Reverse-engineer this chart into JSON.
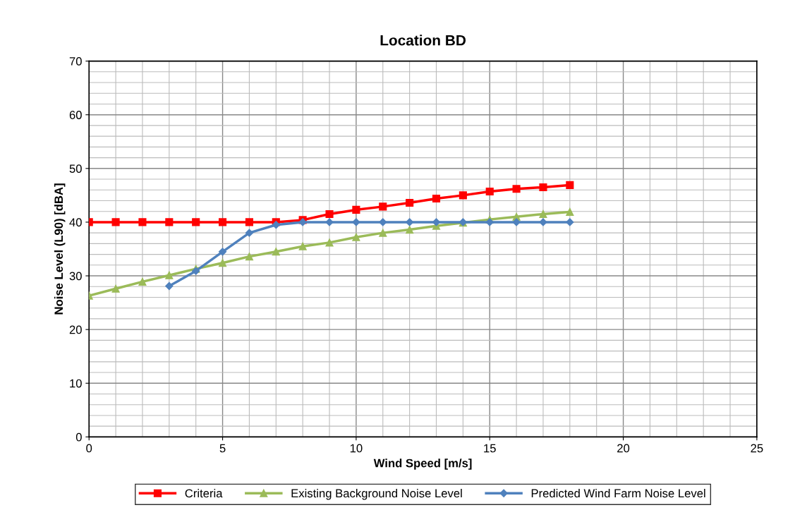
{
  "chart_data": {
    "type": "line",
    "title": "Location BD",
    "xlabel": "Wind Speed [m/s]",
    "ylabel": "Noise Level (L90) [dBA]",
    "xlim": [
      0,
      25
    ],
    "xticks": [
      0,
      5,
      10,
      15,
      20,
      25
    ],
    "ylim": [
      0,
      70
    ],
    "yticks": [
      0,
      10,
      20,
      30,
      40,
      50,
      60,
      70
    ],
    "grid": true,
    "legend": "bottom",
    "line_style": "solid",
    "series": [
      {
        "name": "Criteria",
        "color": "#ff0000",
        "marker": "square",
        "x": [
          0,
          1,
          2,
          3,
          4,
          5,
          6,
          7,
          8,
          9,
          10,
          11,
          12,
          13,
          14,
          15,
          16,
          17,
          18
        ],
        "values": [
          40,
          40,
          40,
          40,
          40,
          40,
          40,
          40,
          40.4,
          41.5,
          42.3,
          42.9,
          43.6,
          44.4,
          45.0,
          45.7,
          46.2,
          46.5,
          46.9
        ]
      },
      {
        "name": "Existing Background Noise Level",
        "color": "#9bbb59",
        "marker": "triangle",
        "x": [
          0,
          1,
          2,
          3,
          4,
          5,
          6,
          7,
          8,
          9,
          10,
          11,
          12,
          13,
          14,
          15,
          16,
          17,
          18
        ],
        "values": [
          26.3,
          27.6,
          28.9,
          30.1,
          31.3,
          32.4,
          33.6,
          34.5,
          35.5,
          36.2,
          37.2,
          38.0,
          38.6,
          39.3,
          39.9,
          40.5,
          41.0,
          41.5,
          41.9
        ]
      },
      {
        "name": "Predicted Wind Farm Noise Level",
        "color": "#4f81bd",
        "marker": "diamond",
        "x": [
          3,
          4,
          5,
          6,
          7,
          8,
          9,
          10,
          11,
          12,
          13,
          14,
          15,
          16,
          17,
          18
        ],
        "values": [
          28.1,
          30.9,
          34.5,
          38.0,
          39.5,
          40,
          40,
          40,
          40,
          40,
          40,
          40,
          40,
          40,
          40,
          40
        ]
      }
    ]
  }
}
